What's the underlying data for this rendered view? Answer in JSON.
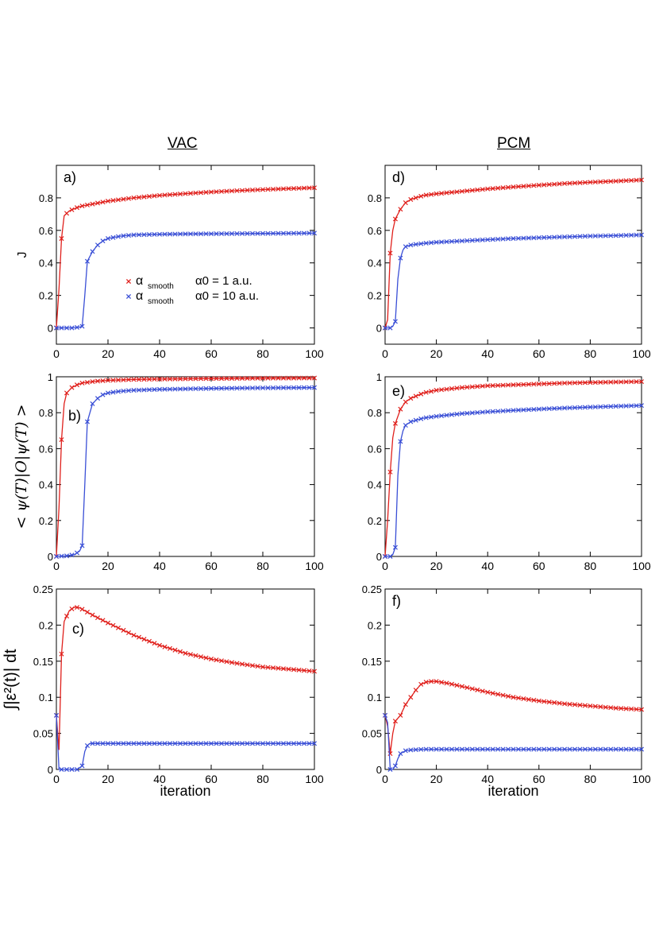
{
  "figure": {
    "col_titles": [
      "VAC",
      "PCM"
    ],
    "legend": {
      "symbol": "α",
      "subscript": "smooth",
      "entries": [
        "α0 = 1     a.u.",
        "α0 = 10   a.u."
      ]
    },
    "colors": {
      "series1": "#e0201c",
      "series2": "#3a4fd6",
      "axis": "#000000"
    }
  },
  "chart_data": [
    {
      "type": "line",
      "panel": "a)",
      "ylabel": "J",
      "xlabel": "",
      "xlim": [
        0,
        100
      ],
      "ylim": [
        -0.1,
        1.0
      ],
      "xticks": [
        "0",
        "20",
        "40",
        "60",
        "80",
        "100"
      ],
      "yticks": [
        "0",
        "0.2",
        "0.4",
        "0.6",
        "0.8"
      ],
      "series": [
        {
          "name": "α smooth α0 = 1 a.u.",
          "points": [
            [
              0,
              0.0
            ],
            [
              1,
              0.24
            ],
            [
              2,
              0.55
            ],
            [
              3,
              0.69
            ],
            [
              5,
              0.72
            ],
            [
              8,
              0.74
            ],
            [
              10,
              0.75
            ],
            [
              15,
              0.765
            ],
            [
              20,
              0.78
            ],
            [
              30,
              0.8
            ],
            [
              40,
              0.815
            ],
            [
              50,
              0.826
            ],
            [
              60,
              0.836
            ],
            [
              70,
              0.844
            ],
            [
              80,
              0.851
            ],
            [
              90,
              0.857
            ],
            [
              100,
              0.862
            ]
          ]
        },
        {
          "name": "α smooth α0 = 10 a.u.",
          "points": [
            [
              0,
              0.0
            ],
            [
              2,
              0.0
            ],
            [
              6,
              0.0
            ],
            [
              9,
              0.005
            ],
            [
              10,
              0.01
            ],
            [
              11,
              0.2
            ],
            [
              12,
              0.41
            ],
            [
              14,
              0.47
            ],
            [
              16,
              0.51
            ],
            [
              18,
              0.535
            ],
            [
              20,
              0.55
            ],
            [
              25,
              0.565
            ],
            [
              30,
              0.572
            ],
            [
              40,
              0.576
            ],
            [
              50,
              0.578
            ],
            [
              60,
              0.579
            ],
            [
              70,
              0.58
            ],
            [
              80,
              0.581
            ],
            [
              90,
              0.582
            ],
            [
              100,
              0.583
            ]
          ]
        }
      ]
    },
    {
      "type": "line",
      "panel": "b)",
      "ylabel": "< ψ(T)|O|ψ(T) >",
      "xlabel": "",
      "xlim": [
        0,
        100
      ],
      "ylim": [
        0,
        1.0
      ],
      "xticks": [
        "0",
        "20",
        "40",
        "60",
        "80",
        "100"
      ],
      "yticks": [
        "0",
        "0.2",
        "0.4",
        "0.6",
        "0.8",
        "1"
      ],
      "series": [
        {
          "name": "α smooth α0 = 1 a.u.",
          "points": [
            [
              0,
              0.0
            ],
            [
              1,
              0.27
            ],
            [
              2,
              0.65
            ],
            [
              3,
              0.85
            ],
            [
              4,
              0.91
            ],
            [
              6,
              0.94
            ],
            [
              8,
              0.955
            ],
            [
              10,
              0.965
            ],
            [
              15,
              0.975
            ],
            [
              20,
              0.98
            ],
            [
              30,
              0.985
            ],
            [
              40,
              0.987
            ],
            [
              60,
              0.99
            ],
            [
              80,
              0.992
            ],
            [
              100,
              0.993
            ]
          ]
        },
        {
          "name": "α smooth α0 = 10 a.u.",
          "points": [
            [
              0,
              0.0
            ],
            [
              4,
              0.003
            ],
            [
              7,
              0.01
            ],
            [
              9,
              0.03
            ],
            [
              10,
              0.06
            ],
            [
              11,
              0.4
            ],
            [
              12,
              0.75
            ],
            [
              14,
              0.85
            ],
            [
              16,
              0.88
            ],
            [
              18,
              0.9
            ],
            [
              20,
              0.91
            ],
            [
              25,
              0.92
            ],
            [
              30,
              0.925
            ],
            [
              40,
              0.93
            ],
            [
              60,
              0.935
            ],
            [
              80,
              0.938
            ],
            [
              100,
              0.94
            ]
          ]
        }
      ]
    },
    {
      "type": "line",
      "panel": "c)",
      "ylabel": "∫|ε²(t)| dt",
      "xlabel": "iteration",
      "xlim": [
        0,
        100
      ],
      "ylim": [
        0,
        0.25
      ],
      "xticks": [
        "0",
        "20",
        "40",
        "60",
        "80",
        "100"
      ],
      "yticks": [
        "0",
        "0.05",
        "0.1",
        "0.15",
        "0.2",
        "0.25"
      ],
      "series": [
        {
          "name": "α smooth α0 = 1 a.u.",
          "points": [
            [
              0,
              0.075
            ],
            [
              1,
              0.027
            ],
            [
              2,
              0.16
            ],
            [
              3,
              0.205
            ],
            [
              5,
              0.22
            ],
            [
              7,
              0.225
            ],
            [
              9,
              0.224
            ],
            [
              12,
              0.218
            ],
            [
              15,
              0.212
            ],
            [
              20,
              0.203
            ],
            [
              30,
              0.186
            ],
            [
              40,
              0.172
            ],
            [
              50,
              0.161
            ],
            [
              60,
              0.153
            ],
            [
              70,
              0.147
            ],
            [
              80,
              0.142
            ],
            [
              90,
              0.139
            ],
            [
              100,
              0.136
            ]
          ]
        },
        {
          "name": "α smooth α0 = 10 a.u.",
          "points": [
            [
              0,
              0.075
            ],
            [
              1,
              0.0
            ],
            [
              2,
              0.0
            ],
            [
              5,
              0.0
            ],
            [
              8,
              0.0
            ],
            [
              10,
              0.005
            ],
            [
              11,
              0.025
            ],
            [
              12,
              0.033
            ],
            [
              13,
              0.036
            ],
            [
              15,
              0.036
            ],
            [
              20,
              0.036
            ],
            [
              40,
              0.036
            ],
            [
              60,
              0.036
            ],
            [
              80,
              0.036
            ],
            [
              100,
              0.036
            ]
          ]
        }
      ]
    },
    {
      "type": "line",
      "panel": "d)",
      "ylabel": "",
      "xlabel": "",
      "xlim": [
        0,
        100
      ],
      "ylim": [
        -0.1,
        1.0
      ],
      "xticks": [
        "0",
        "20",
        "40",
        "60",
        "80",
        "100"
      ],
      "yticks": [
        "0",
        "0.2",
        "0.4",
        "0.6",
        "0.8"
      ],
      "series": [
        {
          "name": "α smooth α0 = 1 a.u.",
          "points": [
            [
              0,
              0.0
            ],
            [
              1,
              0.05
            ],
            [
              2,
              0.46
            ],
            [
              3,
              0.6
            ],
            [
              4,
              0.67
            ],
            [
              6,
              0.73
            ],
            [
              8,
              0.77
            ],
            [
              10,
              0.79
            ],
            [
              15,
              0.815
            ],
            [
              20,
              0.825
            ],
            [
              30,
              0.84
            ],
            [
              40,
              0.855
            ],
            [
              50,
              0.867
            ],
            [
              60,
              0.878
            ],
            [
              70,
              0.888
            ],
            [
              80,
              0.896
            ],
            [
              90,
              0.903
            ],
            [
              100,
              0.91
            ]
          ]
        },
        {
          "name": "α smooth α0 = 10 a.u.",
          "points": [
            [
              0,
              0.0
            ],
            [
              2,
              0.0
            ],
            [
              3,
              0.01
            ],
            [
              4,
              0.04
            ],
            [
              5,
              0.3
            ],
            [
              6,
              0.43
            ],
            [
              7,
              0.48
            ],
            [
              8,
              0.5
            ],
            [
              10,
              0.51
            ],
            [
              15,
              0.52
            ],
            [
              20,
              0.527
            ],
            [
              30,
              0.535
            ],
            [
              40,
              0.543
            ],
            [
              50,
              0.55
            ],
            [
              60,
              0.555
            ],
            [
              70,
              0.56
            ],
            [
              80,
              0.565
            ],
            [
              90,
              0.568
            ],
            [
              100,
              0.572
            ]
          ]
        }
      ]
    },
    {
      "type": "line",
      "panel": "e)",
      "ylabel": "",
      "xlabel": "",
      "xlim": [
        0,
        100
      ],
      "ylim": [
        0,
        1.0
      ],
      "xticks": [
        "0",
        "20",
        "40",
        "60",
        "80",
        "100"
      ],
      "yticks": [
        "0",
        "0.2",
        "0.4",
        "0.6",
        "0.8",
        "1"
      ],
      "series": [
        {
          "name": "α smooth α0 = 1 a.u.",
          "points": [
            [
              0,
              0.0
            ],
            [
              1,
              0.2
            ],
            [
              2,
              0.47
            ],
            [
              3,
              0.66
            ],
            [
              4,
              0.74
            ],
            [
              6,
              0.82
            ],
            [
              8,
              0.86
            ],
            [
              10,
              0.88
            ],
            [
              15,
              0.91
            ],
            [
              20,
              0.925
            ],
            [
              30,
              0.94
            ],
            [
              40,
              0.95
            ],
            [
              50,
              0.955
            ],
            [
              60,
              0.96
            ],
            [
              70,
              0.965
            ],
            [
              80,
              0.968
            ],
            [
              90,
              0.971
            ],
            [
              100,
              0.973
            ]
          ]
        },
        {
          "name": "α smooth α0 = 10 a.u.",
          "points": [
            [
              0,
              0.0
            ],
            [
              2,
              0.0
            ],
            [
              3,
              0.01
            ],
            [
              4,
              0.05
            ],
            [
              5,
              0.45
            ],
            [
              6,
              0.64
            ],
            [
              7,
              0.7
            ],
            [
              8,
              0.73
            ],
            [
              10,
              0.75
            ],
            [
              15,
              0.77
            ],
            [
              20,
              0.78
            ],
            [
              30,
              0.795
            ],
            [
              40,
              0.805
            ],
            [
              50,
              0.813
            ],
            [
              60,
              0.82
            ],
            [
              70,
              0.826
            ],
            [
              80,
              0.831
            ],
            [
              90,
              0.836
            ],
            [
              100,
              0.84
            ]
          ]
        }
      ]
    },
    {
      "type": "line",
      "panel": "f)",
      "ylabel": "",
      "xlabel": "iteration",
      "xlim": [
        0,
        100
      ],
      "ylim": [
        0,
        0.25
      ],
      "xticks": [
        "0",
        "20",
        "40",
        "60",
        "80",
        "100"
      ],
      "yticks": [
        "0",
        "0.05",
        "0.1",
        "0.15",
        "0.2",
        "0.25"
      ],
      "series": [
        {
          "name": "α smooth α0 = 1 a.u.",
          "points": [
            [
              0,
              0.075
            ],
            [
              1,
              0.06
            ],
            [
              2,
              0.022
            ],
            [
              3,
              0.05
            ],
            [
              4,
              0.067
            ],
            [
              6,
              0.075
            ],
            [
              8,
              0.09
            ],
            [
              10,
              0.1
            ],
            [
              12,
              0.11
            ],
            [
              14,
              0.118
            ],
            [
              16,
              0.121
            ],
            [
              18,
              0.122
            ],
            [
              20,
              0.122
            ],
            [
              25,
              0.119
            ],
            [
              30,
              0.115
            ],
            [
              40,
              0.107
            ],
            [
              50,
              0.1
            ],
            [
              60,
              0.095
            ],
            [
              70,
              0.091
            ],
            [
              80,
              0.088
            ],
            [
              90,
              0.085
            ],
            [
              100,
              0.083
            ]
          ]
        },
        {
          "name": "α smooth α0 = 10 a.u.",
          "points": [
            [
              0,
              0.075
            ],
            [
              1,
              0.065
            ],
            [
              2,
              0.0
            ],
            [
              3,
              0.0
            ],
            [
              4,
              0.005
            ],
            [
              5,
              0.015
            ],
            [
              6,
              0.022
            ],
            [
              8,
              0.026
            ],
            [
              10,
              0.027
            ],
            [
              15,
              0.028
            ],
            [
              20,
              0.028
            ],
            [
              40,
              0.028
            ],
            [
              60,
              0.028
            ],
            [
              80,
              0.028
            ],
            [
              100,
              0.028
            ]
          ]
        }
      ]
    }
  ]
}
